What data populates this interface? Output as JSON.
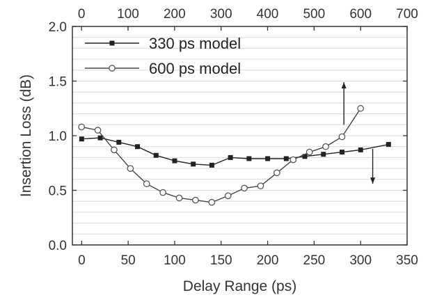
{
  "chart_data": {
    "type": "line",
    "title": "",
    "xlabel": "Delay Range (ps)",
    "ylabel": "Insertion Loss (dB)",
    "xlim": [
      -10,
      350
    ],
    "ylim": [
      0.0,
      2.0
    ],
    "x_ticks": [
      "0",
      "50",
      "100",
      "150",
      "200",
      "250",
      "300",
      "350"
    ],
    "x_tick_values": [
      0,
      50,
      100,
      150,
      200,
      250,
      300,
      350
    ],
    "x2_ticks": [
      "0",
      "100",
      "200",
      "300",
      "400",
      "500",
      "600",
      "700"
    ],
    "x2_tick_values": [
      0,
      100,
      200,
      300,
      400,
      500,
      600,
      700
    ],
    "y_ticks": [
      "0.0",
      "0.5",
      "1.0",
      "1.5",
      "2.0"
    ],
    "y_tick_values": [
      0.0,
      0.5,
      1.0,
      1.5,
      2.0
    ],
    "grid": true,
    "legend_position": "top-left",
    "series": [
      {
        "name": "330 ps model",
        "marker": "filled-square",
        "color": "#222222",
        "axis": "bottom",
        "x": [
          0,
          20,
          40,
          60,
          80,
          100,
          120,
          140,
          160,
          180,
          200,
          220,
          240,
          260,
          280,
          300,
          330
        ],
        "y": [
          0.97,
          0.98,
          0.94,
          0.9,
          0.82,
          0.77,
          0.74,
          0.73,
          0.8,
          0.79,
          0.79,
          0.79,
          0.81,
          0.83,
          0.85,
          0.87,
          0.92
        ]
      },
      {
        "name": "600 ps model",
        "marker": "open-circle",
        "color": "#444444",
        "axis": "top",
        "x": [
          0,
          35,
          70,
          105,
          140,
          175,
          210,
          245,
          280,
          315,
          350,
          385,
          420,
          455,
          490,
          525,
          560,
          600
        ],
        "y": [
          1.08,
          1.05,
          0.87,
          0.7,
          0.56,
          0.48,
          0.43,
          0.41,
          0.39,
          0.45,
          0.52,
          0.54,
          0.66,
          0.78,
          0.85,
          0.9,
          0.99,
          1.25
        ]
      }
    ],
    "annotations": [
      {
        "type": "arrow",
        "direction": "up",
        "x_axis": "bottom",
        "x": 282,
        "y_from": 1.1,
        "y_to": 1.49
      },
      {
        "type": "arrow",
        "direction": "down",
        "x_axis": "bottom",
        "x": 313,
        "y_from": 0.88,
        "y_to": 0.56
      }
    ]
  }
}
